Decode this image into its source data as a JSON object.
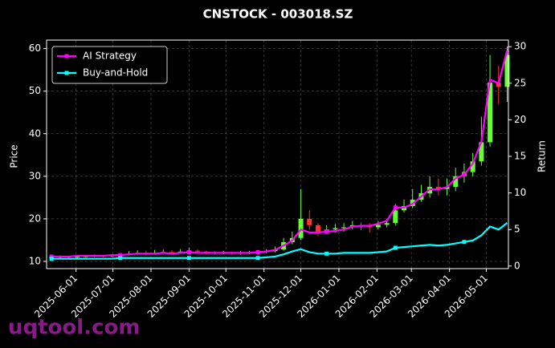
{
  "chart_data": {
    "type": "candlestick_returns",
    "title": "CNSTOCK - 003018.SZ",
    "y_label": "Price",
    "y2_label": "Return",
    "watermark": "uqtool.com",
    "x": [
      "2025-05-12",
      "2025-05-19",
      "2025-05-26",
      "2025-06-02",
      "2025-06-09",
      "2025-06-16",
      "2025-06-23",
      "2025-06-30",
      "2025-07-07",
      "2025-07-14",
      "2025-07-21",
      "2025-07-28",
      "2025-08-04",
      "2025-08-11",
      "2025-08-18",
      "2025-08-25",
      "2025-09-01",
      "2025-09-08",
      "2025-09-15",
      "2025-09-22",
      "2025-09-29",
      "2025-10-06",
      "2025-10-13",
      "2025-10-20",
      "2025-10-27",
      "2025-11-03",
      "2025-11-10",
      "2025-11-17",
      "2025-11-24",
      "2025-12-01",
      "2025-12-08",
      "2025-12-15",
      "2025-12-22",
      "2025-12-29",
      "2026-01-05",
      "2026-01-12",
      "2026-01-19",
      "2026-01-26",
      "2026-02-02",
      "2026-02-09",
      "2026-02-16",
      "2026-02-23",
      "2026-03-02",
      "2026-03-09",
      "2026-03-16",
      "2026-03-23",
      "2026-03-30",
      "2026-04-06",
      "2026-04-13",
      "2026-04-20",
      "2026-04-27",
      "2026-05-04",
      "2026-05-11",
      "2026-05-18"
    ],
    "candles": {
      "up_color": "#66ff33",
      "down_color": "#ff3333",
      "open": [
        10.9,
        11.0,
        11.1,
        11.0,
        11.1,
        11.2,
        11.3,
        11.2,
        11.4,
        11.6,
        11.8,
        12.0,
        11.9,
        12.0,
        12.2,
        12.0,
        12.3,
        12.5,
        12.3,
        12.1,
        12.0,
        12.1,
        11.9,
        12.0,
        12.1,
        12.2,
        12.4,
        12.8,
        14.5,
        15.5,
        20.0,
        18.5,
        17.0,
        17.5,
        17.8,
        18.0,
        18.5,
        18.2,
        18.0,
        18.6,
        19.0,
        22.0,
        23.0,
        24.5,
        26.0,
        27.5,
        27.0,
        27.5,
        30.0,
        31.0,
        33.5,
        38.0,
        52.0,
        51.0
      ],
      "high": [
        11.3,
        11.4,
        11.3,
        11.4,
        11.5,
        11.6,
        11.5,
        11.7,
        11.9,
        12.4,
        12.6,
        12.5,
        12.7,
        12.8,
        12.6,
        12.9,
        13.2,
        12.8,
        12.5,
        12.4,
        12.5,
        12.3,
        12.4,
        12.5,
        12.6,
        12.9,
        13.5,
        15.5,
        17.0,
        27.0,
        22.0,
        19.0,
        18.5,
        18.8,
        19.0,
        19.5,
        19.2,
        19.0,
        19.5,
        20.0,
        23.5,
        24.5,
        27.0,
        28.0,
        30.0,
        29.5,
        29.5,
        32.0,
        33.0,
        35.5,
        44.0,
        58.5,
        56.0,
        60.5
      ],
      "low": [
        10.6,
        10.8,
        10.7,
        10.8,
        10.9,
        11.0,
        10.9,
        11.0,
        11.2,
        11.4,
        11.6,
        11.5,
        11.6,
        11.8,
        11.6,
        11.8,
        12.0,
        11.9,
        11.7,
        11.6,
        11.7,
        11.5,
        11.6,
        11.7,
        11.8,
        11.9,
        12.2,
        12.5,
        14.0,
        15.0,
        17.5,
        16.0,
        16.5,
        16.8,
        17.0,
        17.5,
        17.3,
        16.8,
        17.5,
        18.0,
        18.5,
        21.5,
        22.5,
        24.0,
        25.0,
        25.5,
        25.5,
        26.5,
        28.5,
        30.0,
        32.5,
        37.0,
        47.0,
        47.5
      ],
      "close": [
        11.0,
        11.1,
        11.0,
        11.1,
        11.2,
        11.3,
        11.2,
        11.4,
        11.6,
        11.8,
        12.0,
        11.9,
        12.0,
        12.2,
        12.0,
        12.3,
        12.5,
        12.3,
        12.1,
        12.0,
        12.1,
        11.9,
        12.0,
        12.1,
        12.2,
        12.4,
        12.8,
        14.5,
        15.5,
        20.0,
        18.5,
        17.0,
        17.5,
        17.8,
        18.0,
        18.5,
        18.2,
        18.0,
        18.6,
        19.0,
        22.0,
        23.0,
        24.5,
        26.0,
        27.5,
        27.0,
        27.5,
        30.0,
        31.0,
        33.5,
        38.0,
        52.0,
        51.0,
        58.5
      ]
    },
    "series": [
      {
        "name": "AI Strategy",
        "color": "#ff00ff",
        "axis": "y2",
        "values": [
          1.3,
          1.3,
          1.3,
          1.4,
          1.4,
          1.4,
          1.4,
          1.5,
          1.5,
          1.6,
          1.7,
          1.7,
          1.7,
          1.8,
          1.7,
          1.8,
          1.9,
          1.8,
          1.8,
          1.8,
          1.8,
          1.8,
          1.8,
          1.8,
          1.9,
          2.0,
          2.2,
          2.8,
          3.5,
          5.0,
          4.6,
          4.6,
          4.7,
          4.8,
          5.0,
          5.4,
          5.5,
          5.5,
          5.8,
          6.2,
          8.0,
          8.0,
          8.5,
          9.5,
          10.5,
          10.5,
          10.8,
          12.0,
          12.5,
          14.0,
          17.0,
          25.5,
          25.0,
          29.5
        ]
      },
      {
        "name": "Buy-and-Hold",
        "color": "#00ffff",
        "axis": "y2",
        "values": [
          1.0,
          1.0,
          1.0,
          1.0,
          1.0,
          1.0,
          1.0,
          1.0,
          1.1,
          1.1,
          1.1,
          1.1,
          1.1,
          1.1,
          1.1,
          1.1,
          1.1,
          1.1,
          1.1,
          1.1,
          1.1,
          1.1,
          1.1,
          1.1,
          1.1,
          1.2,
          1.3,
          1.6,
          2.0,
          2.3,
          1.9,
          1.7,
          1.7,
          1.7,
          1.8,
          1.8,
          1.8,
          1.8,
          1.9,
          2.0,
          2.5,
          2.6,
          2.7,
          2.8,
          2.9,
          2.8,
          2.9,
          3.1,
          3.3,
          3.5,
          4.2,
          5.4,
          5.0,
          5.9
        ]
      }
    ],
    "xlim": [
      "2025-05-08",
      "2026-05-19"
    ],
    "xticks": [
      "2025-06-01",
      "2025-07-01",
      "2025-08-01",
      "2025-09-01",
      "2025-10-01",
      "2025-11-01",
      "2025-12-01",
      "2026-01-01",
      "2026-02-01",
      "2026-03-01",
      "2026-04-01",
      "2026-05-01"
    ],
    "ylim": [
      8.3,
      62
    ],
    "yticks": [
      10,
      20,
      30,
      40,
      50,
      60
    ],
    "y2lim": [
      -0.35,
      30.9
    ],
    "y2ticks": [
      0,
      5,
      10,
      15,
      20,
      25,
      30
    ],
    "grid": true,
    "legend": "upper left"
  }
}
